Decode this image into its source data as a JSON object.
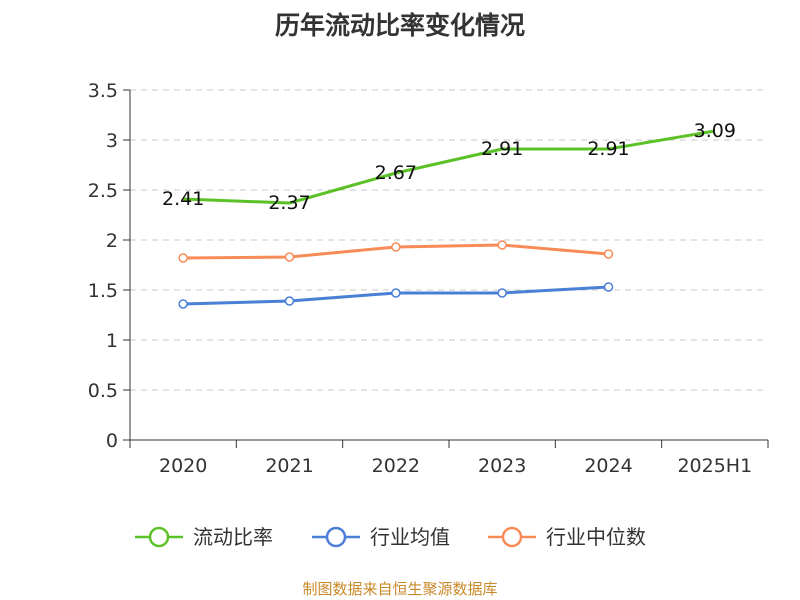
{
  "chart_data": {
    "type": "line",
    "title": "历年流动比率变化情况",
    "categories": [
      "2020",
      "2021",
      "2022",
      "2023",
      "2024",
      "2025H1"
    ],
    "ylim": [
      0,
      3.5
    ],
    "yticks": [
      0,
      0.5,
      1,
      1.5,
      2,
      2.5,
      3,
      3.5
    ],
    "ytick_labels": [
      "0",
      "0.5",
      "1",
      "1.5",
      "2",
      "2.5",
      "3",
      "3.5"
    ],
    "grid": true,
    "legend_position": "bottom",
    "series": [
      {
        "name": "流动比率",
        "color": "#5cc127",
        "values": [
          2.41,
          2.37,
          2.67,
          2.91,
          2.91,
          3.09
        ],
        "labels": [
          "2.41",
          "2.37",
          "2.67",
          "2.91",
          "2.91",
          "3.09"
        ]
      },
      {
        "name": "行业均值",
        "color": "#4a7fd6",
        "values": [
          1.36,
          1.39,
          1.47,
          1.47,
          1.53,
          null
        ]
      },
      {
        "name": "行业中位数",
        "color": "#f78c58",
        "values": [
          1.82,
          1.83,
          1.93,
          1.95,
          1.86,
          null
        ]
      }
    ]
  },
  "source_note": "制图数据来自恒生聚源数据库"
}
